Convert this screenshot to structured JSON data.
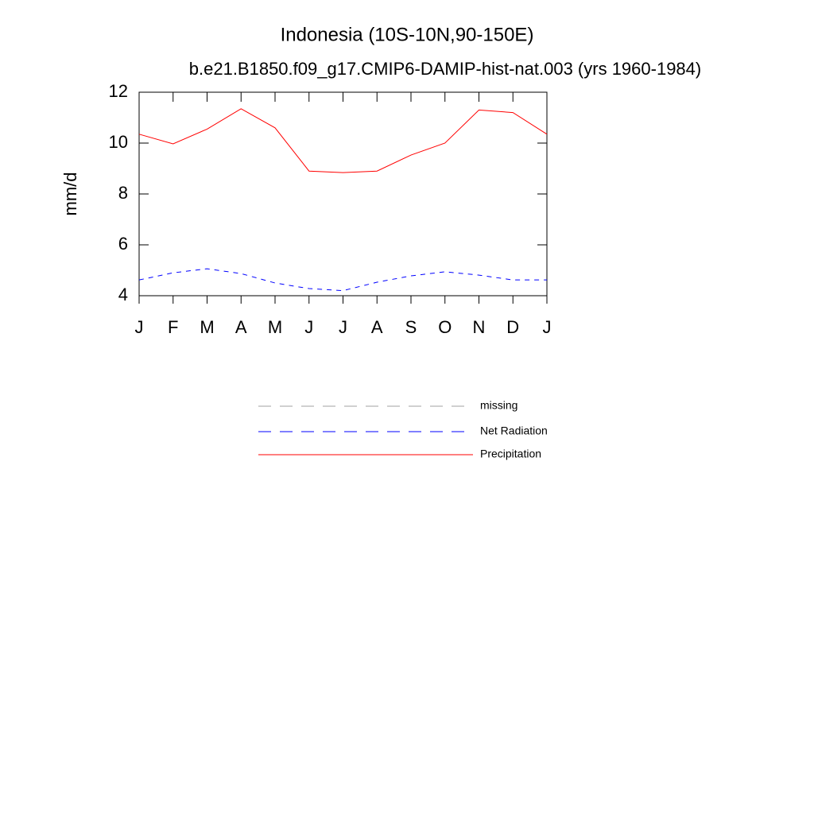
{
  "chart_data": {
    "type": "line",
    "title": "Indonesia (10S-10N,90-150E)",
    "subtitle": "b.e21.B1850.f09_g17.CMIP6-DAMIP-hist-nat.003 (yrs 1960-1984)",
    "y_label": "mm/d",
    "categories": [
      "J",
      "F",
      "M",
      "A",
      "M",
      "J",
      "J",
      "A",
      "S",
      "O",
      "N",
      "D",
      "J"
    ],
    "ylim": [
      4,
      12
    ],
    "yticks": [
      4,
      6,
      8,
      10,
      12
    ],
    "series": [
      {
        "name": "missing",
        "color": "#a0a0a0",
        "dash": true,
        "values": [
          null,
          null,
          null,
          null,
          null,
          null,
          null,
          null,
          null,
          null,
          null,
          null,
          null
        ]
      },
      {
        "name": "Net Radiation",
        "color": "#0000ff",
        "dash": true,
        "values": [
          4.62,
          4.9,
          5.06,
          4.87,
          4.5,
          4.28,
          4.2,
          4.53,
          4.78,
          4.94,
          4.81,
          4.62,
          4.62
        ]
      },
      {
        "name": "Precipitation",
        "color": "#ff0000",
        "dash": false,
        "values": [
          10.35,
          9.97,
          10.55,
          11.35,
          10.6,
          8.9,
          8.84,
          8.9,
          9.53,
          10.0,
          11.3,
          11.2,
          10.35
        ]
      }
    ]
  }
}
